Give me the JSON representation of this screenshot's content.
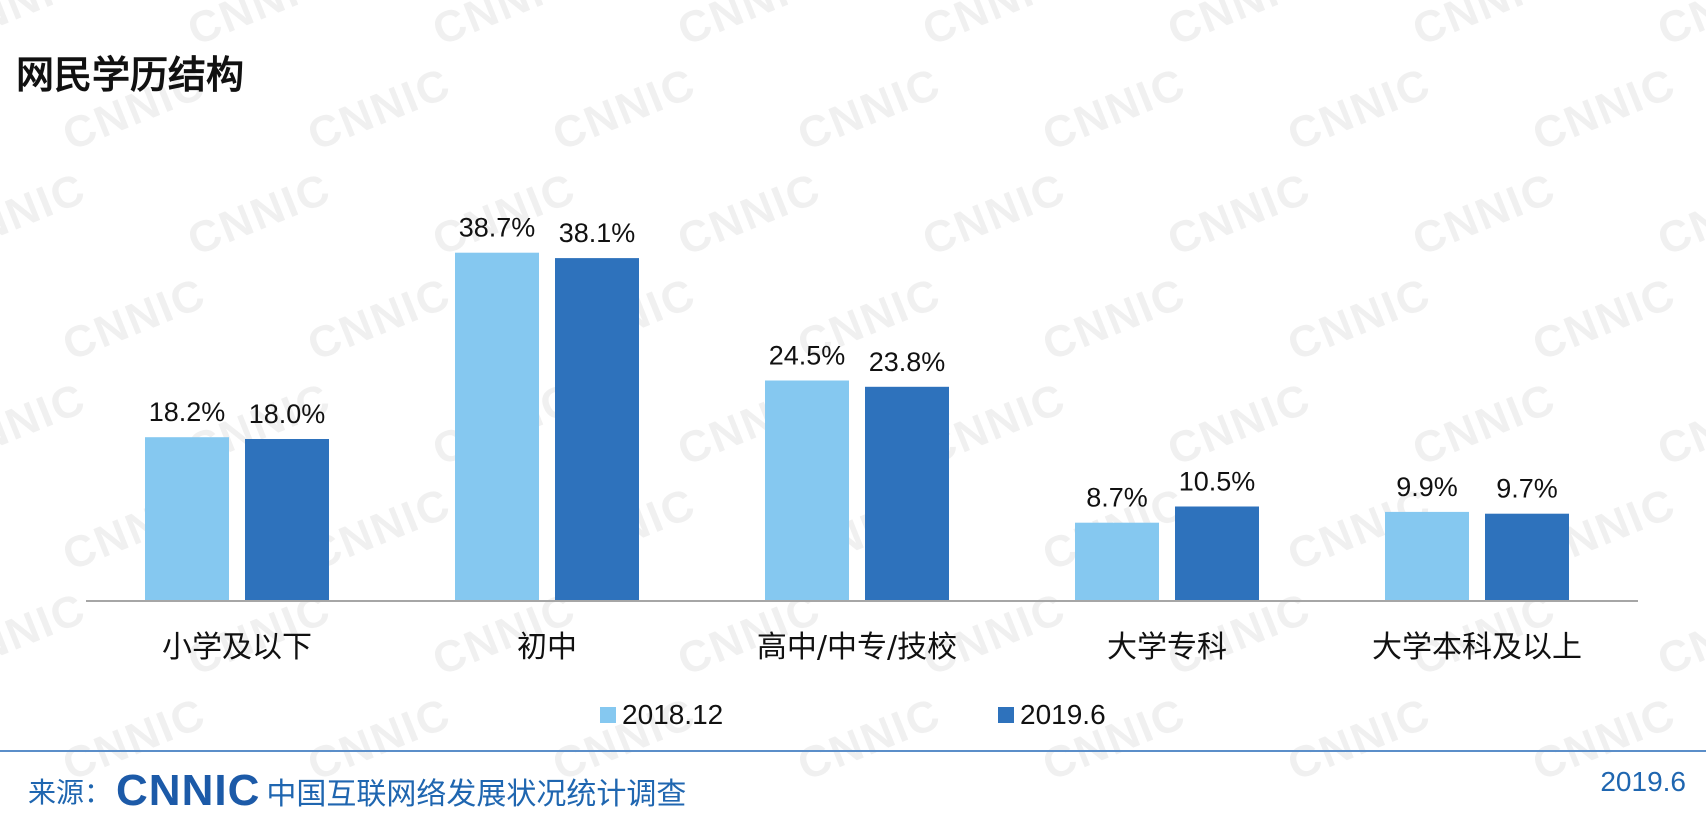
{
  "title": "网民学历结构",
  "watermark_text": "CNNIC",
  "chart_data": {
    "type": "bar",
    "title": "网民学历结构",
    "categories": [
      "小学及以下",
      "初中",
      "高中/中专/技校",
      "大学专科",
      "大学本科及以上"
    ],
    "series": [
      {
        "name": "2018.12",
        "values": [
          18.2,
          38.7,
          24.5,
          8.7,
          9.9
        ],
        "labels": [
          "18.2%",
          "38.7%",
          "24.5%",
          "8.7%",
          "9.9%"
        ],
        "color": "#85c8f0"
      },
      {
        "name": "2019.6",
        "values": [
          18.0,
          38.1,
          23.8,
          10.5,
          9.7
        ],
        "labels": [
          "18.0%",
          "38.1%",
          "23.8%",
          "10.5%",
          "9.7%"
        ],
        "color": "#2e72bc"
      }
    ],
    "xlabel": "",
    "ylabel": "",
    "ylim": [
      0,
      40
    ],
    "grid": false,
    "legend_position": "bottom"
  },
  "footer": {
    "source_label": "来源：",
    "logo_text": "CNNIC",
    "org_name": "中国互联网络发展状况统计调查",
    "date": "2019.6"
  },
  "colors": {
    "axis": "#a6a6a6",
    "footer_accent": "#1f66b0"
  }
}
